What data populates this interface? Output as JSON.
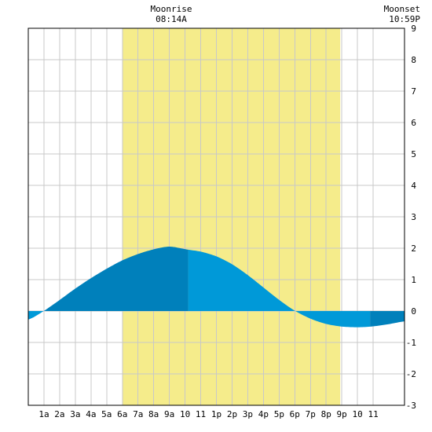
{
  "chart_data": {
    "type": "area",
    "xlim": [
      0,
      24
    ],
    "ylim": [
      -3,
      9
    ],
    "x_ticks": [
      {
        "x": 1,
        "label": "1a"
      },
      {
        "x": 2,
        "label": "2a"
      },
      {
        "x": 3,
        "label": "3a"
      },
      {
        "x": 4,
        "label": "4a"
      },
      {
        "x": 5,
        "label": "5a"
      },
      {
        "x": 6,
        "label": "6a"
      },
      {
        "x": 7,
        "label": "7a"
      },
      {
        "x": 8,
        "label": "8a"
      },
      {
        "x": 9,
        "label": "9a"
      },
      {
        "x": 10,
        "label": "10"
      },
      {
        "x": 11,
        "label": "11"
      },
      {
        "x": 12,
        "label": "1p"
      },
      {
        "x": 13,
        "label": "2p"
      },
      {
        "x": 14,
        "label": "3p"
      },
      {
        "x": 15,
        "label": "4p"
      },
      {
        "x": 16,
        "label": "5p"
      },
      {
        "x": 17,
        "label": "6p"
      },
      {
        "x": 18,
        "label": "7p"
      },
      {
        "x": 19,
        "label": "8p"
      },
      {
        "x": 20,
        "label": "9p"
      },
      {
        "x": 21,
        "label": "10"
      },
      {
        "x": 22,
        "label": "11"
      }
    ],
    "y_ticks": [
      -3,
      -2,
      -1,
      0,
      1,
      2,
      3,
      4,
      5,
      6,
      7,
      8,
      9
    ],
    "grid": true,
    "moon_visible_band": {
      "start": 6.0,
      "end": 19.9
    },
    "moonrise": {
      "label": "Moonrise",
      "time": "08:14A"
    },
    "moonset": {
      "label": "Moonset",
      "time": "10:59P"
    },
    "tide": {
      "x": [
        0,
        1,
        2,
        3,
        4,
        5,
        6,
        7,
        8,
        9,
        10.2,
        11,
        12,
        13,
        14,
        15,
        16,
        17,
        18,
        19,
        20,
        21,
        21.8,
        22,
        23,
        24
      ],
      "y": [
        -0.3,
        0.0,
        0.35,
        0.72,
        1.05,
        1.35,
        1.62,
        1.82,
        1.97,
        2.07,
        1.95,
        1.9,
        1.75,
        1.5,
        1.15,
        0.75,
        0.35,
        0.0,
        -0.25,
        -0.42,
        -0.5,
        -0.52,
        -0.5,
        -0.49,
        -0.42,
        -0.32
      ]
    },
    "tide_segments": [
      {
        "start": 0,
        "end": 1,
        "color": "#0099d8"
      },
      {
        "start": 1,
        "end": 10.2,
        "color": "#0080bb"
      },
      {
        "start": 10.2,
        "end": 21.8,
        "color": "#0099d8"
      },
      {
        "start": 21.8,
        "end": 24,
        "color": "#0080bb"
      }
    ],
    "colors": {
      "band": "#f5ec8b",
      "grid": "#c8c8c8",
      "frame": "#000000"
    }
  }
}
